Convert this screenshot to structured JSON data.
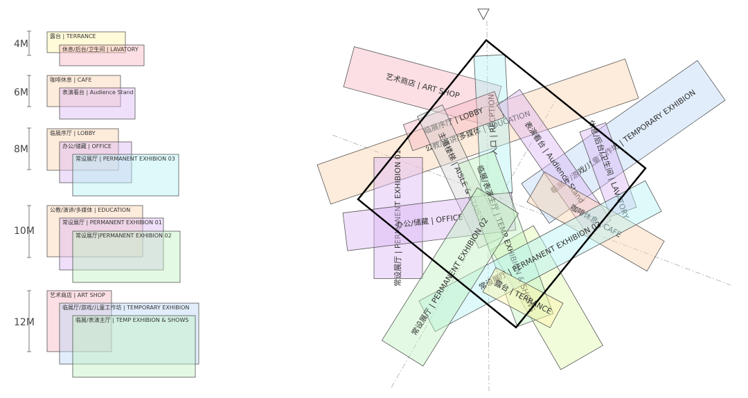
{
  "legend": {
    "groups": [
      {
        "height": "4M",
        "rooms": [
          "露台 | TERRANCE",
          "休息/后台/卫生间 | LAVATORY"
        ]
      },
      {
        "height": "6M",
        "rooms": [
          "咖啡休息 | CAFE",
          "表演看台 | Audience Stand"
        ]
      },
      {
        "height": "8M",
        "rooms": [
          "临展序厅 | LOBBY",
          "办公/储藏 | OFFICE",
          "常设展厅 | PERMANENT EXHIBION 03"
        ]
      },
      {
        "height": "10M",
        "rooms": [
          "公教/演讲/多媒体 | EDUCATION",
          "常设展厅 | PERMANENT EXHIBION 01",
          "常设展厅|PERMANENT EXHIBION 02"
        ]
      },
      {
        "height": "12M",
        "rooms": [
          "艺术商店 | ART SHOP",
          "临展厅/游戏/儿童工作坊 | TEMPORARY EXHIBION",
          "临展/表演主厅 | TEMP EXHIBION & SHOWS"
        ]
      }
    ]
  },
  "plan": {
    "rooms": [
      "艺术商店 | ART SHOP",
      "公教/演讲/多媒体 | EDUCATION",
      "临展厅/游戏/儿童工作坊 | TEMPORARY EXHIBION",
      "入口 | RECPTION",
      "临展序厅 | LOBBY",
      "主道楼梯 | AISLE & STAIRS",
      "表演看台 | Audience Stand",
      "休息/后台/卫生间 | LAVATORY",
      "常设展厅 | PERMANENT EXHIBION 01",
      "办公/储藏 | OFFICE",
      "临展/表演主厅 | TEMP EXHIBION & SHOWS",
      "咖啡休息 | CAFE",
      "常设展厅 | PERMANENT EXHIBION 03",
      "常设展厅 | PERMANENT EXHIBION 02",
      "露台 | TERRANCE"
    ]
  }
}
